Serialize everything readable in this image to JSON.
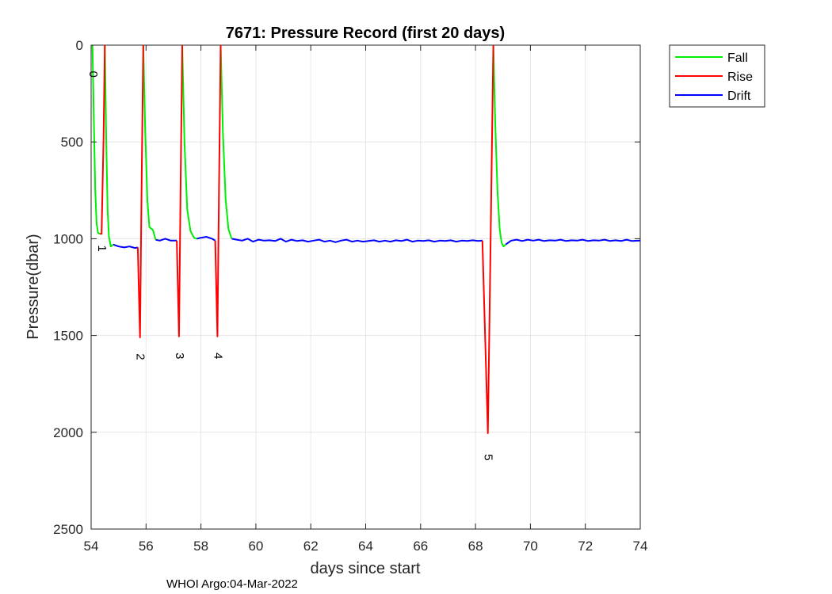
{
  "chart_data": {
    "type": "line",
    "title": "7671: Pressure Record (first 20 days)",
    "xlabel": "days since start",
    "ylabel": "Pressure(dbar)",
    "xlim": [
      54,
      74
    ],
    "ylim": [
      0,
      2500
    ],
    "y_reversed": true,
    "grid": true,
    "legend_position": "outside-top-right",
    "xticks": [
      54,
      56,
      58,
      60,
      62,
      64,
      66,
      68,
      70,
      72,
      74
    ],
    "yticks": [
      0,
      500,
      1000,
      1500,
      2000,
      2500
    ],
    "series": [
      {
        "name": "Fall",
        "color": "#00ee00",
        "segments": [
          [
            [
              54.05,
              0
            ],
            [
              54.1,
              400
            ],
            [
              54.15,
              750
            ],
            [
              54.2,
              920
            ],
            [
              54.25,
              970
            ],
            [
              54.32,
              975
            ]
          ],
          [
            [
              54.5,
              0
            ],
            [
              54.55,
              500
            ],
            [
              54.6,
              850
            ],
            [
              54.65,
              990
            ],
            [
              54.72,
              1040
            ],
            [
              54.8,
              1030
            ]
          ],
          [
            [
              55.9,
              0
            ],
            [
              55.97,
              450
            ],
            [
              56.05,
              800
            ],
            [
              56.12,
              940
            ],
            [
              56.25,
              955
            ],
            [
              56.35,
              1005
            ]
          ],
          [
            [
              57.32,
              0
            ],
            [
              57.4,
              500
            ],
            [
              57.5,
              850
            ],
            [
              57.62,
              960
            ],
            [
              57.75,
              995
            ],
            [
              57.85,
              1000
            ]
          ],
          [
            [
              58.72,
              0
            ],
            [
              58.8,
              450
            ],
            [
              58.9,
              800
            ],
            [
              59.0,
              950
            ],
            [
              59.12,
              1000
            ]
          ],
          [
            [
              68.65,
              0
            ],
            [
              68.72,
              400
            ],
            [
              68.8,
              750
            ],
            [
              68.88,
              950
            ],
            [
              68.95,
              1020
            ],
            [
              69.02,
              1040
            ],
            [
              69.1,
              1030
            ]
          ]
        ]
      },
      {
        "name": "Rise",
        "color": "#ff0000",
        "segments": [
          [
            [
              54.32,
              975
            ],
            [
              54.38,
              975
            ],
            [
              54.45,
              500
            ],
            [
              54.5,
              0
            ]
          ],
          [
            [
              55.7,
              1045
            ],
            [
              55.78,
              1510
            ],
            [
              55.84,
              700
            ],
            [
              55.9,
              0
            ]
          ],
          [
            [
              57.12,
              1010
            ],
            [
              57.2,
              1505
            ],
            [
              57.26,
              700
            ],
            [
              57.32,
              0
            ]
          ],
          [
            [
              58.52,
              1010
            ],
            [
              58.6,
              1505
            ],
            [
              58.66,
              700
            ],
            [
              58.72,
              0
            ]
          ],
          [
            [
              68.25,
              1010
            ],
            [
              68.45,
              2005
            ],
            [
              68.55,
              1000
            ],
            [
              68.65,
              0
            ]
          ]
        ]
      },
      {
        "name": "Drift",
        "color": "#0000ff",
        "segments": [
          [
            [
              54.8,
              1030
            ],
            [
              55.0,
              1040
            ],
            [
              55.2,
              1045
            ],
            [
              55.4,
              1040
            ],
            [
              55.6,
              1048
            ],
            [
              55.7,
              1045
            ]
          ],
          [
            [
              56.35,
              1005
            ],
            [
              56.5,
              1010
            ],
            [
              56.7,
              1000
            ],
            [
              56.9,
              1010
            ],
            [
              57.12,
              1010
            ]
          ],
          [
            [
              57.85,
              1000
            ],
            [
              58.0,
              995
            ],
            [
              58.2,
              990
            ],
            [
              58.4,
              1000
            ],
            [
              58.52,
              1010
            ]
          ],
          [
            [
              59.12,
              1000
            ],
            [
              59.3,
              1005
            ],
            [
              59.5,
              1010
            ],
            [
              59.7,
              1000
            ],
            [
              59.9,
              1015
            ],
            [
              60.1,
              1005
            ],
            [
              60.3,
              1010
            ],
            [
              60.5,
              1008
            ],
            [
              60.7,
              1012
            ],
            [
              60.9,
              1000
            ],
            [
              61.1,
              1015
            ],
            [
              61.3,
              1005
            ],
            [
              61.5,
              1012
            ],
            [
              61.7,
              1008
            ],
            [
              61.9,
              1015
            ],
            [
              62.1,
              1010
            ],
            [
              62.3,
              1005
            ],
            [
              62.5,
              1015
            ],
            [
              62.7,
              1010
            ],
            [
              62.9,
              1018
            ],
            [
              63.1,
              1010
            ],
            [
              63.3,
              1005
            ],
            [
              63.5,
              1015
            ],
            [
              63.7,
              1010
            ],
            [
              63.9,
              1015
            ],
            [
              64.1,
              1012
            ],
            [
              64.3,
              1008
            ],
            [
              64.5,
              1015
            ],
            [
              64.7,
              1010
            ],
            [
              64.9,
              1015
            ],
            [
              65.1,
              1008
            ],
            [
              65.3,
              1012
            ],
            [
              65.5,
              1005
            ],
            [
              65.7,
              1015
            ],
            [
              65.9,
              1010
            ],
            [
              66.1,
              1012
            ],
            [
              66.3,
              1008
            ],
            [
              66.5,
              1015
            ],
            [
              66.7,
              1010
            ],
            [
              66.9,
              1012
            ],
            [
              67.1,
              1008
            ],
            [
              67.3,
              1015
            ],
            [
              67.5,
              1010
            ],
            [
              67.7,
              1012
            ],
            [
              67.9,
              1008
            ],
            [
              68.1,
              1012
            ],
            [
              68.25,
              1010
            ]
          ],
          [
            [
              69.1,
              1030
            ],
            [
              69.3,
              1010
            ],
            [
              69.5,
              1005
            ],
            [
              69.7,
              1012
            ],
            [
              69.9,
              1005
            ],
            [
              70.1,
              1010
            ],
            [
              70.3,
              1005
            ],
            [
              70.5,
              1012
            ],
            [
              70.7,
              1008
            ],
            [
              70.9,
              1010
            ],
            [
              71.1,
              1005
            ],
            [
              71.3,
              1012
            ],
            [
              71.5,
              1008
            ],
            [
              71.7,
              1010
            ],
            [
              71.9,
              1005
            ],
            [
              72.1,
              1012
            ],
            [
              72.3,
              1008
            ],
            [
              72.5,
              1010
            ],
            [
              72.7,
              1005
            ],
            [
              72.9,
              1012
            ],
            [
              73.1,
              1008
            ],
            [
              73.3,
              1012
            ],
            [
              73.5,
              1005
            ],
            [
              73.7,
              1012
            ],
            [
              74.0,
              1010
            ]
          ]
        ]
      }
    ],
    "profile_labels": [
      {
        "text": "0",
        "x": 54.05,
        "y": 150
      },
      {
        "text": "1",
        "x": 54.38,
        "y": 1050
      },
      {
        "text": "2",
        "x": 55.78,
        "y": 1610
      },
      {
        "text": "3",
        "x": 57.2,
        "y": 1605
      },
      {
        "text": "4",
        "x": 58.6,
        "y": 1605
      },
      {
        "text": "5",
        "x": 68.45,
        "y": 2130
      }
    ]
  },
  "footer": "WHOI Argo:04-Mar-2022"
}
